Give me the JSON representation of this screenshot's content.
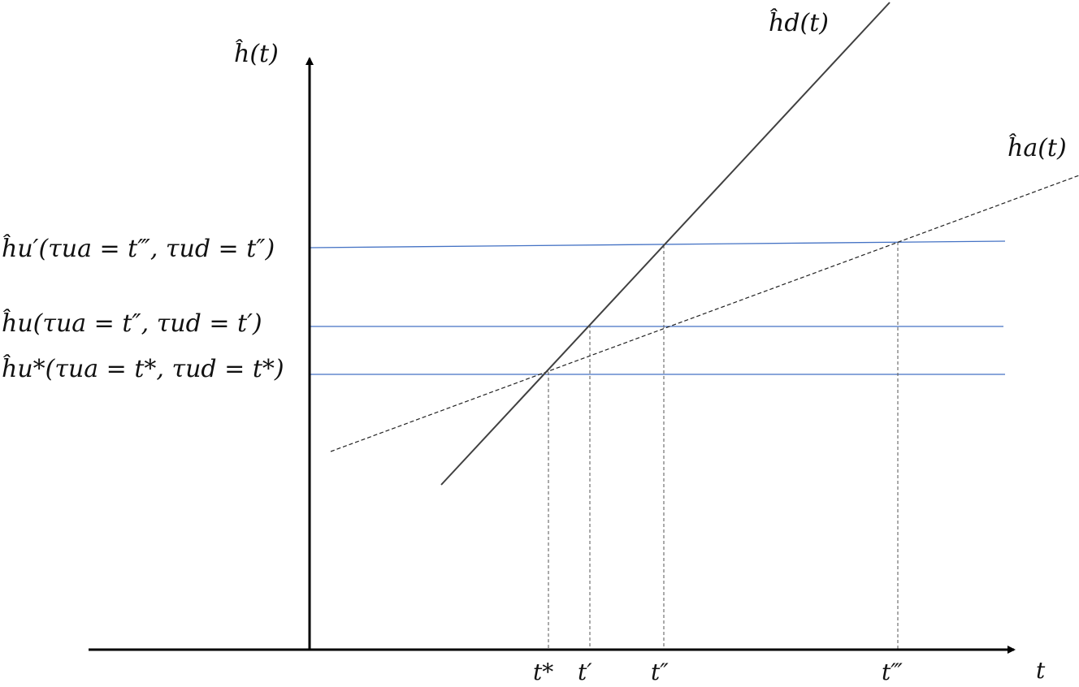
{
  "colors": {
    "axis": "#000000",
    "curve_d": "#404040",
    "curve_a": "#222222",
    "level_lines": "#4472C4",
    "guides": "#555555"
  },
  "labels": {
    "y_axis": "ĥ(t)",
    "x_axis": "t",
    "curve_d": "ĥd(t)",
    "curve_a": "ĥa(t)",
    "level_u_prime": "ĥu′(τua = t‴, τud = t″)",
    "level_u": "ĥu(τua = t″, τud = t′)",
    "level_u_star": "ĥu*(τua = t*, τud = t*)",
    "tick_t_star": "t*",
    "tick_t_prime": "t′",
    "tick_t_dprime": "t″",
    "tick_t_tprime": "t‴"
  },
  "icons": {
    "x_arrow": "arrow-right-icon",
    "y_arrow": "arrow-up-icon"
  }
}
